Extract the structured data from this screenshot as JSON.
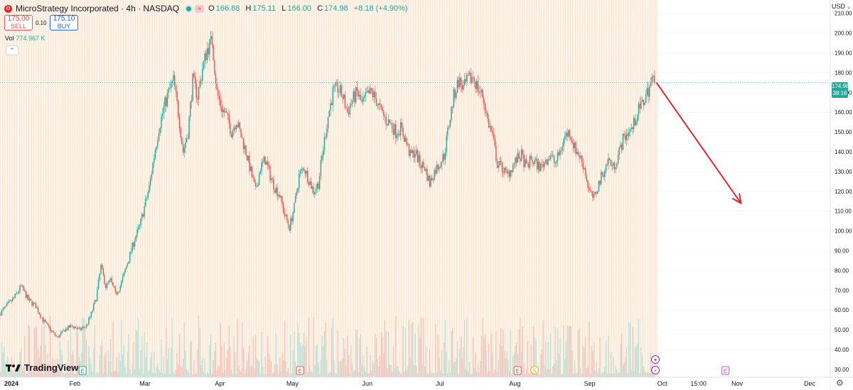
{
  "header": {
    "title": "MicroStrategy Incorporated · 4h · NASDAQ",
    "approx_icon": "≈",
    "ohlc": {
      "o_label": "O",
      "o": "166.88",
      "h_label": "H",
      "h": "175.11",
      "l_label": "L",
      "l": "166.00",
      "c_label": "C",
      "c": "174.98",
      "change": "+8.18 (+4.90%)"
    }
  },
  "trade": {
    "sell_price": "175.00",
    "sell_label": "SELL",
    "spread": "0.10",
    "buy_price": "175.10",
    "buy_label": "BUY"
  },
  "volume": {
    "label": "Vol",
    "value": "774.967 K"
  },
  "collapse_icon": "⌃",
  "currency": "USD",
  "last_price_tag": {
    "price": "174.98",
    "countdown": "38:16"
  },
  "branding": "TradingView",
  "colors": {
    "up": "#26a69a",
    "down": "#ef5350",
    "arrow": "#e0282e",
    "earnings": "#ef5350",
    "buy": "#2962ff"
  },
  "icons": {
    "settings": "gear-icon",
    "logo": "tradingview-logo-icon",
    "symbol": "microstrategy-logo-icon"
  },
  "chart_data": {
    "type": "candlestick",
    "interval": "4h",
    "ylim": [
      28,
      212
    ],
    "y_ticks": [
      30,
      40,
      50,
      60,
      70,
      80,
      90,
      100,
      110,
      120,
      130,
      140,
      150,
      160,
      170,
      180,
      190,
      200,
      210
    ],
    "y_tick_labels": [
      "30.00",
      "40.00",
      "50.00",
      "60.00",
      "70.00",
      "80.00",
      "90.00",
      "100.00",
      "110.00",
      "120.00",
      "130.00",
      "140.00",
      "150.00",
      "160.00",
      "170.00",
      "180.00",
      "190.00",
      "200.00",
      "210.00"
    ],
    "x_labels": [
      {
        "label": "2024",
        "bold": true,
        "t": 0
      },
      {
        "label": "Feb",
        "t": 31
      },
      {
        "label": "Mar",
        "t": 60
      },
      {
        "label": "Apr",
        "t": 91
      },
      {
        "label": "May",
        "t": 121
      },
      {
        "label": "Jun",
        "t": 152
      },
      {
        "label": "Jul",
        "t": 182
      },
      {
        "label": "Aug",
        "t": 213
      },
      {
        "label": "Sep",
        "t": 244
      },
      {
        "label": "Oct",
        "t": 274
      },
      {
        "label": "15:00",
        "t": 289
      },
      {
        "label": "Nov",
        "t": 305
      },
      {
        "label": "Dec",
        "t": 335
      }
    ],
    "last_price": 174.98,
    "price_path": [
      [
        0,
        58
      ],
      [
        3,
        62
      ],
      [
        6,
        66
      ],
      [
        9,
        72
      ],
      [
        12,
        65
      ],
      [
        15,
        62
      ],
      [
        18,
        55
      ],
      [
        21,
        50
      ],
      [
        24,
        46
      ],
      [
        27,
        50
      ],
      [
        30,
        52
      ],
      [
        33,
        50
      ],
      [
        36,
        52
      ],
      [
        38,
        58
      ],
      [
        40,
        66
      ],
      [
        42,
        82
      ],
      [
        44,
        72
      ],
      [
        46,
        75
      ],
      [
        48,
        68
      ],
      [
        50,
        72
      ],
      [
        52,
        80
      ],
      [
        54,
        88
      ],
      [
        56,
        96
      ],
      [
        58,
        102
      ],
      [
        60,
        112
      ],
      [
        62,
        122
      ],
      [
        64,
        138
      ],
      [
        66,
        152
      ],
      [
        68,
        162
      ],
      [
        70,
        170
      ],
      [
        72,
        176
      ],
      [
        74,
        160
      ],
      [
        76,
        140
      ],
      [
        78,
        150
      ],
      [
        80,
        176
      ],
      [
        82,
        168
      ],
      [
        84,
        182
      ],
      [
        86,
        192
      ],
      [
        88,
        196
      ],
      [
        90,
        170
      ],
      [
        92,
        162
      ],
      [
        94,
        158
      ],
      [
        96,
        150
      ],
      [
        98,
        156
      ],
      [
        100,
        148
      ],
      [
        102,
        140
      ],
      [
        104,
        130
      ],
      [
        106,
        120
      ],
      [
        108,
        132
      ],
      [
        110,
        136
      ],
      [
        112,
        128
      ],
      [
        114,
        122
      ],
      [
        116,
        118
      ],
      [
        118,
        108
      ],
      [
        120,
        102
      ],
      [
        122,
        112
      ],
      [
        124,
        128
      ],
      [
        126,
        132
      ],
      [
        128,
        126
      ],
      [
        130,
        120
      ],
      [
        132,
        124
      ],
      [
        134,
        142
      ],
      [
        136,
        158
      ],
      [
        138,
        170
      ],
      [
        140,
        172
      ],
      [
        142,
        168
      ],
      [
        144,
        160
      ],
      [
        146,
        166
      ],
      [
        148,
        170
      ],
      [
        150,
        164
      ],
      [
        152,
        168
      ],
      [
        154,
        170
      ],
      [
        156,
        166
      ],
      [
        158,
        160
      ],
      [
        160,
        156
      ],
      [
        162,
        154
      ],
      [
        164,
        150
      ],
      [
        166,
        152
      ],
      [
        168,
        146
      ],
      [
        170,
        138
      ],
      [
        172,
        140
      ],
      [
        174,
        134
      ],
      [
        176,
        132
      ],
      [
        178,
        124
      ],
      [
        180,
        130
      ],
      [
        182,
        134
      ],
      [
        184,
        138
      ],
      [
        186,
        154
      ],
      [
        188,
        168
      ],
      [
        190,
        176
      ],
      [
        192,
        172
      ],
      [
        194,
        176
      ],
      [
        196,
        178
      ],
      [
        198,
        172
      ],
      [
        200,
        168
      ],
      [
        202,
        156
      ],
      [
        204,
        148
      ],
      [
        206,
        134
      ],
      [
        208,
        132
      ],
      [
        210,
        128
      ],
      [
        212,
        132
      ],
      [
        214,
        136
      ],
      [
        216,
        138
      ],
      [
        218,
        132
      ],
      [
        220,
        136
      ],
      [
        222,
        134
      ],
      [
        224,
        132
      ],
      [
        226,
        136
      ],
      [
        228,
        138
      ],
      [
        230,
        134
      ],
      [
        232,
        140
      ],
      [
        234,
        148
      ],
      [
        236,
        150
      ],
      [
        238,
        142
      ],
      [
        240,
        138
      ],
      [
        242,
        132
      ],
      [
        244,
        120
      ],
      [
        246,
        116
      ],
      [
        248,
        124
      ],
      [
        250,
        130
      ],
      [
        252,
        136
      ],
      [
        254,
        132
      ],
      [
        256,
        138
      ],
      [
        258,
        146
      ],
      [
        260,
        150
      ],
      [
        262,
        152
      ],
      [
        264,
        160
      ],
      [
        266,
        164
      ],
      [
        268,
        170
      ],
      [
        270,
        176
      ],
      [
        271,
        174.98
      ]
    ],
    "volume_range": [
      5,
      92
    ],
    "forecast_arrow": {
      "from": [
        271,
        174.98
      ],
      "to": [
        306,
        114
      ]
    },
    "events": [
      {
        "t": 33,
        "type": "earnings",
        "label": "E",
        "color": "#26a69a"
      },
      {
        "t": 123,
        "type": "earnings",
        "label": "E",
        "color": "#ef5350"
      },
      {
        "t": 213,
        "type": "earnings",
        "label": "E",
        "color": "#ef5350"
      },
      {
        "t": 220,
        "type": "split",
        "label": "S",
        "color": "#f5a623"
      },
      {
        "t": 270,
        "type": "future",
        "label": "✦",
        "color": "#9c27b0",
        "stack": 1
      },
      {
        "t": 270,
        "type": "dividend",
        "label": "⚡",
        "color": "#9c27b0"
      },
      {
        "t": 299,
        "type": "earnings",
        "label": "E",
        "color": "#e040fb"
      }
    ]
  }
}
